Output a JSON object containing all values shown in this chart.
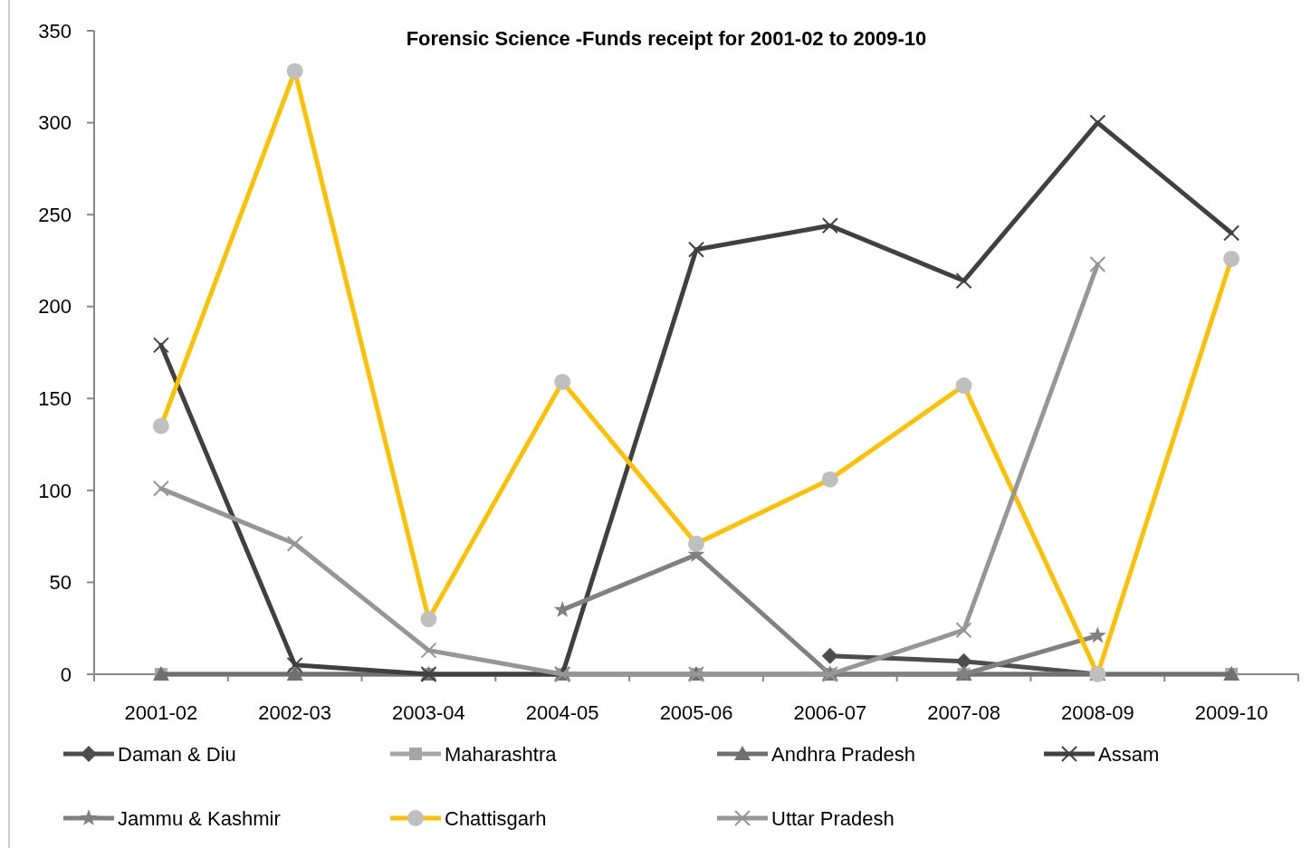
{
  "chart_data": {
    "type": "line",
    "title": "Forensic Science -Funds receipt for 2001-02 to 2009-10",
    "categories": [
      "2001-02",
      "2002-03",
      "2003-04",
      "2004-05",
      "2005-06",
      "2006-07",
      "2007-08",
      "2008-09",
      "2009-10"
    ],
    "series": [
      {
        "name": "Daman & Diu",
        "color": "#4d4d4d",
        "marker": "diamond",
        "values": [
          null,
          null,
          null,
          null,
          null,
          10,
          7,
          0,
          null
        ]
      },
      {
        "name": "Maharashtra",
        "color": "#a6a6a6",
        "marker": "square",
        "values": [
          0,
          0,
          0,
          0,
          0,
          0,
          0,
          0,
          0
        ]
      },
      {
        "name": "Andhra Pradesh",
        "color": "#707070",
        "marker": "triangle",
        "values": [
          0,
          0,
          0,
          0,
          0,
          0,
          0,
          0,
          0
        ]
      },
      {
        "name": "Assam",
        "color": "#404040",
        "marker": "cross",
        "values": [
          179,
          5,
          0,
          0,
          231,
          244,
          214,
          300,
          240
        ]
      },
      {
        "name": "Jammu & Kashmir",
        "color": "#808080",
        "marker": "star",
        "values": [
          null,
          null,
          null,
          35,
          65,
          0,
          0,
          21,
          null
        ]
      },
      {
        "name": "Chattisgarh",
        "color": "#ffc000",
        "marker": "circle",
        "values": [
          135,
          328,
          30,
          159,
          71,
          106,
          157,
          0,
          226
        ]
      },
      {
        "name": "Uttar Pradesh",
        "color": "#969696",
        "marker": "cross",
        "values": [
          101,
          71,
          13,
          0,
          0,
          0,
          24,
          223,
          null
        ]
      }
    ],
    "ylim": [
      0,
      350
    ],
    "yticks": [
      0,
      50,
      100,
      150,
      200,
      250,
      300,
      350
    ],
    "grid": false,
    "legend": "bottom",
    "line_style": "solid"
  }
}
